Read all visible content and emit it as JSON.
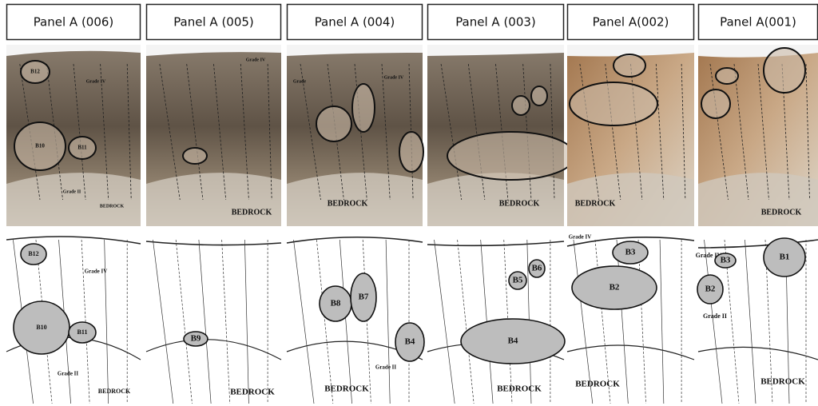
{
  "panels": [
    {
      "title": "Panel A (006)",
      "photo_labels": [
        "B12",
        "Grade IV",
        "B10",
        "B11",
        "Grade II",
        "BEDROCK"
      ],
      "sketch_labels": [
        "B12",
        "Grade IV",
        "B10",
        "B11",
        "Grade II",
        "BEDROCK"
      ]
    },
    {
      "title": "Panel A (005)",
      "photo_labels": [
        "Grade IV",
        "BEDROCK"
      ],
      "sketch_labels": [
        "B9",
        "BEDROCK"
      ]
    },
    {
      "title": "Panel A (004)",
      "photo_labels": [
        "Grade",
        "Grade IV",
        "BEDROCK"
      ],
      "sketch_labels": [
        "B8",
        "B7",
        "B4",
        "Grade II",
        "BEDROCK"
      ]
    },
    {
      "title": "Panel A (003)",
      "photo_labels": [
        "BEDROCK"
      ],
      "sketch_labels": [
        "B6",
        "B5",
        "B4",
        "BEDROCK"
      ]
    },
    {
      "title": "Panel A(002)",
      "photo_labels": [
        "BEDROCK"
      ],
      "sketch_labels": [
        "Grade IV",
        "B3",
        "B2",
        "BEDROCK"
      ]
    },
    {
      "title": "Panel A(001)",
      "photo_labels": [
        "BEDROCK"
      ],
      "sketch_labels": [
        "Grade IV",
        "B3",
        "B1",
        "B2",
        "Grade II",
        "BEDROCK"
      ]
    }
  ]
}
